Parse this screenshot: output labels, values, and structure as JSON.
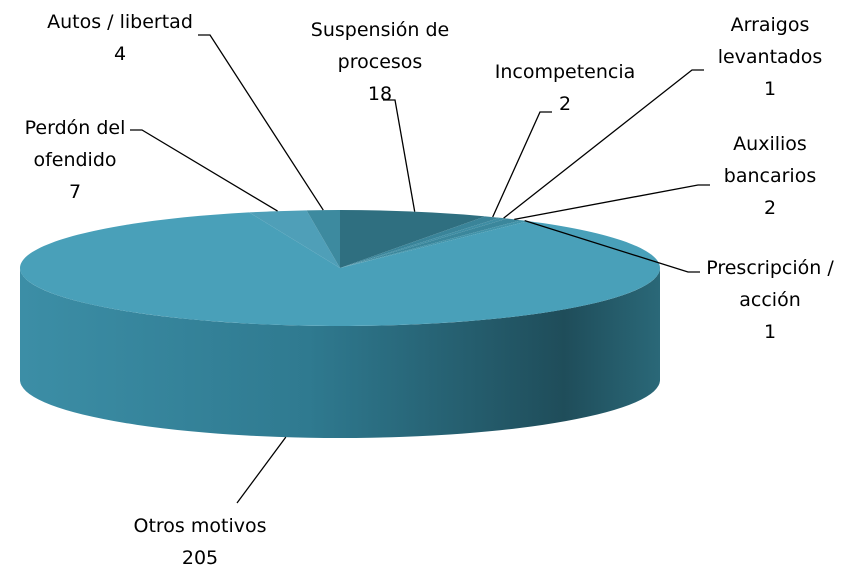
{
  "chart_data": {
    "type": "pie3d",
    "categories": [
      "Suspensión de procesos",
      "Incompetencia",
      "Arraigos levantados",
      "Auxilios bancarios",
      "Prescripción / acción",
      "Otros motivos",
      "Perdón del ofendido",
      "Autos / libertad"
    ],
    "values": [
      18,
      2,
      1,
      2,
      1,
      205,
      7,
      4
    ],
    "colors": [
      "#2f6f80",
      "#3a8499",
      "#3f8da3",
      "#3b879c",
      "#4294aa",
      "#49a0b9",
      "#4f9fb8",
      "#3d8a9f"
    ]
  }
}
